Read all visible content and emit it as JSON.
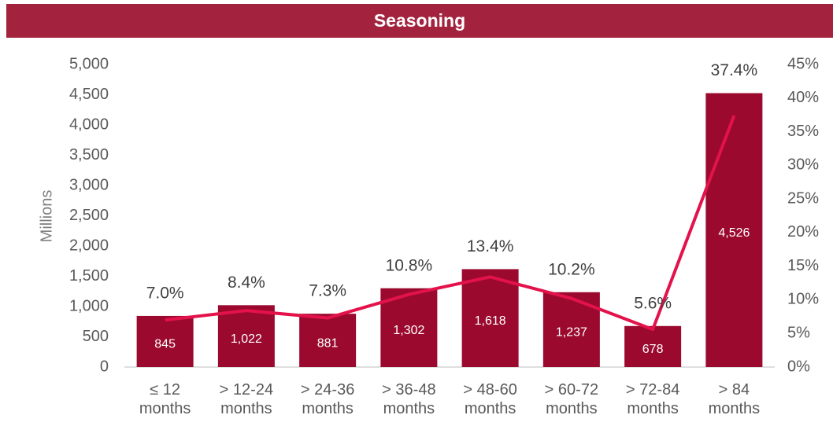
{
  "chart_data": {
    "type": "bar_line",
    "title": "Seasoning",
    "y_label": "Millions",
    "categories": [
      "≤ 12 months",
      "> 12-24 months",
      "> 24-36 months",
      "> 36-48 months",
      "> 48-60 months",
      "> 60-72 months",
      "> 72-84 months",
      "> 84 months"
    ],
    "series": [
      {
        "type": "bar",
        "color": "#9b0a2e",
        "values": [
          845,
          1022,
          881,
          1302,
          1618,
          1237,
          678,
          4526
        ],
        "value_labels": [
          "845",
          "1,022",
          "881",
          "1,302",
          "1,618",
          "1,237",
          "678",
          "4,526"
        ]
      },
      {
        "type": "line",
        "axis": "y2",
        "color": "#e3124b",
        "values": [
          7.0,
          8.4,
          7.3,
          10.8,
          13.4,
          10.2,
          5.6,
          37.4
        ],
        "value_labels": [
          "7.0%",
          "8.4%",
          "7.3%",
          "10.8%",
          "13.4%",
          "10.2%",
          "5.6%",
          "37.4%"
        ]
      }
    ],
    "ylim": [
      0,
      5000
    ],
    "yticks": [
      0,
      500,
      {
        "value": 1000,
        "label": "1,000"
      },
      {
        "value": 1500,
        "label": "1,500"
      },
      {
        "value": 2000,
        "label": "2,000"
      },
      {
        "value": 2500,
        "label": "2,500"
      },
      {
        "value": 3000,
        "label": "3,000"
      },
      {
        "value": 3500,
        "label": "3,500"
      },
      {
        "value": 4000,
        "label": "4,000"
      },
      {
        "value": 4500,
        "label": "4,500"
      },
      {
        "value": 5000,
        "label": "5,000"
      }
    ],
    "y2lim": [
      0,
      45
    ],
    "y2ticks": [
      {
        "value": 0,
        "label": "0%"
      },
      {
        "value": 5,
        "label": "5%"
      },
      {
        "value": 10,
        "label": "10%"
      },
      {
        "value": 15,
        "label": "15%"
      },
      {
        "value": 20,
        "label": "20%"
      },
      {
        "value": 25,
        "label": "25%"
      },
      {
        "value": 30,
        "label": "30%"
      },
      {
        "value": 35,
        "label": "35%"
      },
      {
        "value": 40,
        "label": "40%"
      },
      {
        "value": 45,
        "label": "45%"
      }
    ],
    "grid": false
  }
}
